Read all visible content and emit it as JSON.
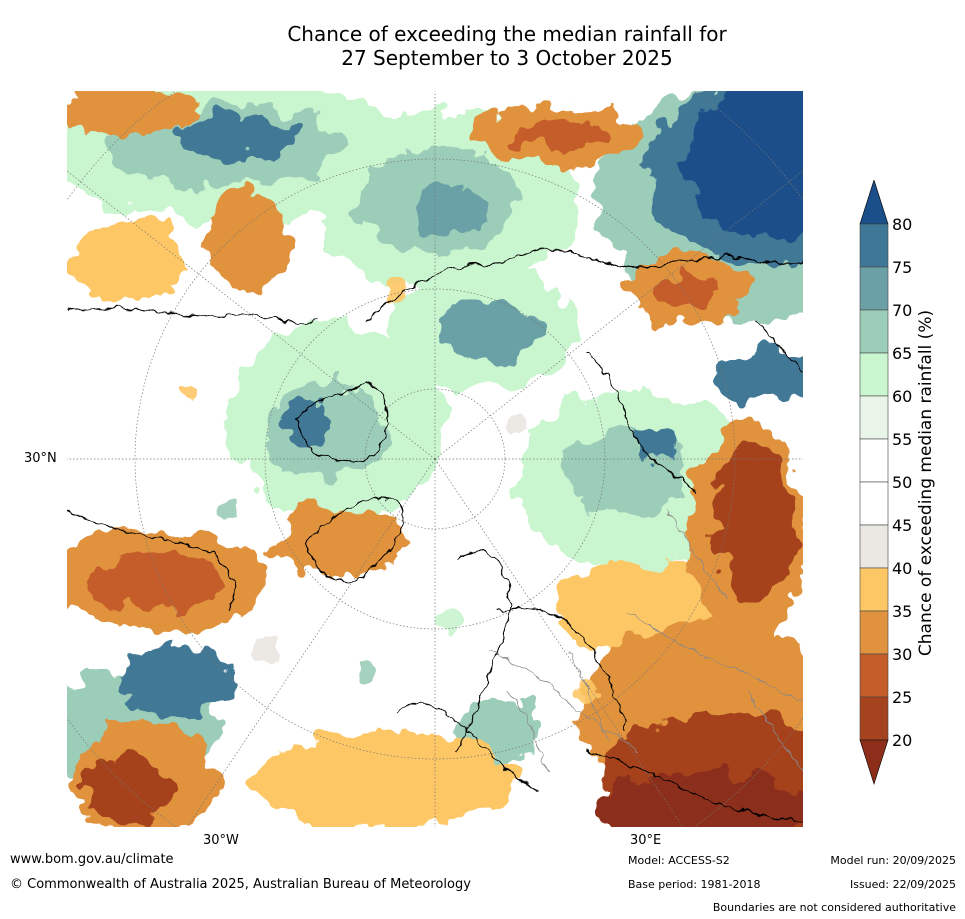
{
  "title_line1": "Chance of exceeding the median rainfall for",
  "title_line2": "27 September to 3 October 2025",
  "lat_label": "30°N",
  "lon_labels": [
    "30°W",
    "30°E"
  ],
  "legend": {
    "title": "Chance of exceeding median rainfall (%)",
    "ticks": [
      "80",
      "75",
      "70",
      "65",
      "60",
      "55",
      "50",
      "45",
      "40",
      "35",
      "30",
      "25",
      "20"
    ],
    "colors": [
      "#1a4f8a",
      "#3f7896",
      "#6ba1a6",
      "#9ccdb9",
      "#c9f5cf",
      "#eaf5ea",
      "#ffffff",
      "#ffffff",
      "#ebe7e3",
      "#fdc765",
      "#e0923e",
      "#c45d2a",
      "#a5431f",
      "#8c2e1a"
    ]
  },
  "footer": {
    "url": "www.bom.gov.au/climate",
    "copyright": "© Commonwealth of Australia 2025, Australian Bureau of Meteorology",
    "model": "Model: ACCESS-S2",
    "base_period": "Base period: 1981-2018",
    "model_run": "Model run: 20/09/2025",
    "issued": "Issued: 22/09/2025",
    "disclaimer": "Boundaries are not considered authoritative"
  }
}
